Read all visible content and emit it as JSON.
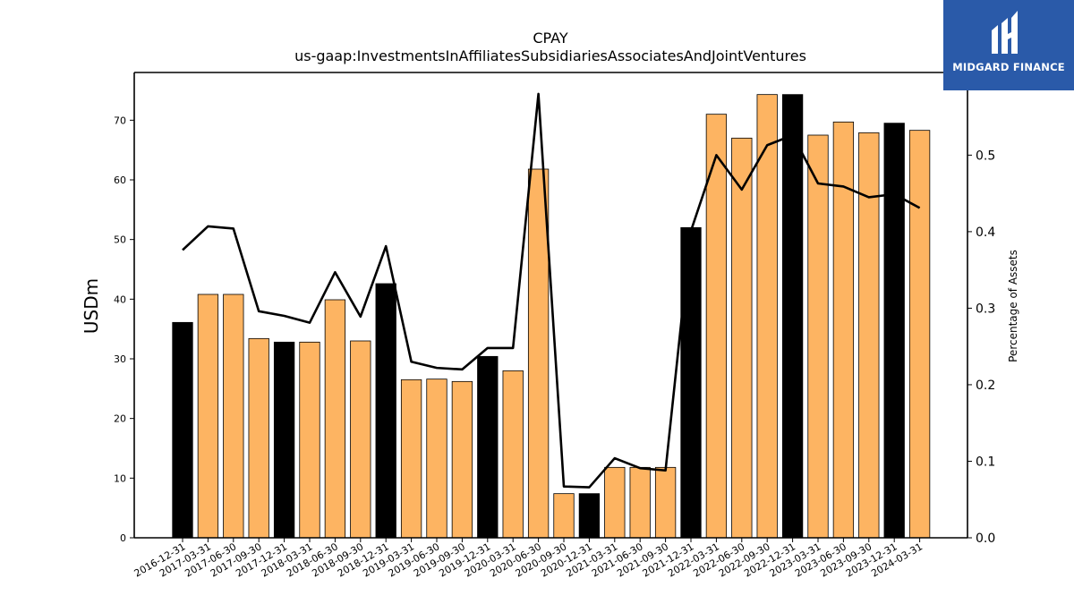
{
  "logo": {
    "text": "MIDGARD FINANCE",
    "background": "#2a5aa9"
  },
  "colors": {
    "bar_quarter": "#fdb462",
    "bar_year_end": "#000000",
    "line": "#000000"
  },
  "chart_data": {
    "type": "bar",
    "title": "CPAY",
    "subtitle": "us-gaap:InvestmentsInAffiliatesSubsidiariesAssociatesAndJointVentures",
    "ylabel": "USDm",
    "y2label": "Percentage of Assets",
    "ylim": [
      0,
      78
    ],
    "y2lim": [
      0,
      0.608
    ],
    "yticks": [
      0,
      10,
      20,
      30,
      40,
      50,
      60,
      70
    ],
    "y2ticks": [
      "0.0",
      "0.1",
      "0.2",
      "0.3",
      "0.4",
      "0.5"
    ],
    "categories": [
      "2016-12-31",
      "2017-03-31",
      "2017-06-30",
      "2017-09-30",
      "2017-12-31",
      "2018-03-31",
      "2018-06-30",
      "2018-09-30",
      "2018-12-31",
      "2019-03-31",
      "2019-06-30",
      "2019-09-30",
      "2019-12-31",
      "2020-03-31",
      "2020-06-30",
      "2020-09-30",
      "2020-12-31",
      "2021-03-31",
      "2021-06-30",
      "2021-09-30",
      "2021-12-31",
      "2022-03-31",
      "2022-06-30",
      "2022-09-30",
      "2022-12-31",
      "2023-03-31",
      "2023-06-30",
      "2023-09-30",
      "2023-12-31",
      "2024-03-31"
    ],
    "series": [
      {
        "values": [
          36.1,
          40.8,
          40.8,
          33.4,
          32.8,
          32.8,
          39.9,
          33.0,
          42.6,
          26.5,
          26.6,
          26.2,
          30.4,
          28.0,
          61.8,
          7.4,
          7.4,
          11.8,
          11.8,
          11.8,
          52.0,
          71.0,
          67.0,
          74.3,
          74.3,
          67.5,
          69.7,
          67.9,
          69.5,
          68.3
        ]
      },
      {
        "axis": "right",
        "type": "line",
        "values": [
          0.376,
          0.407,
          0.404,
          0.296,
          0.29,
          0.281,
          0.347,
          0.289,
          0.381,
          0.23,
          0.222,
          0.22,
          0.248,
          0.248,
          0.58,
          0.067,
          0.066,
          0.104,
          0.091,
          0.088,
          0.401,
          0.5,
          0.455,
          0.513,
          0.526,
          0.463,
          0.459,
          0.445,
          0.449,
          0.431
        ]
      }
    ],
    "year_end_categories": [
      "2016-12-31",
      "2017-12-31",
      "2018-12-31",
      "2019-12-31",
      "2020-12-31",
      "2021-12-31",
      "2022-12-31",
      "2023-12-31"
    ],
    "grid": false,
    "legend": "none"
  }
}
